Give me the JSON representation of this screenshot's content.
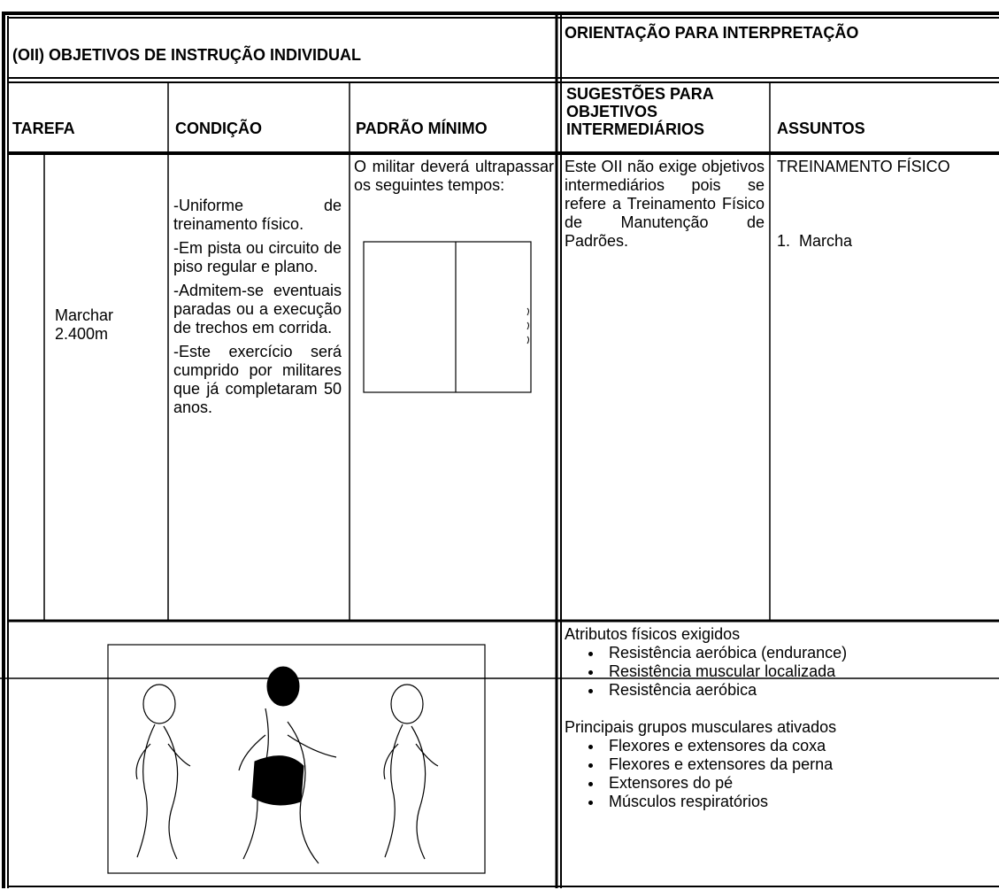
{
  "header": {
    "left": "(OII) OBJETIVOS DE INSTRUÇÃO INDIVIDUAL",
    "right": "ORIENTAÇÃO PARA INTERPRETAÇÃO"
  },
  "columns": [
    "TAREFA",
    "CONDIÇÃO",
    "PADRÃO MÍNIMO",
    "SUGESTÕES PARA OBJETIVOS INTERMEDIÁRIOS",
    "ASSUNTOS"
  ],
  "row": {
    "tarefa": "Marchar 2.400m",
    "condicao": [
      "-Uniforme de treinamento físico.",
      "-Em pista ou circuito de piso regular e plano.",
      "-Admitem-se eventuais paradas ou a execução de trechos em corrida.",
      "-Este exercício será cumprido por militares que já completaram 50 anos."
    ],
    "padrao_minimo": "O militar deverá ultrapassar os seguintes tempos:",
    "sugestoes": "Este OII não exige objetivos intermediários pois se refere a Treinamento Físico de Manutenção de Padrões.",
    "assuntos": {
      "title": "TREINAMENTO FÍSICO",
      "item": "1.  Marcha"
    }
  },
  "attributes": {
    "title": "Atributos físicos exigidos",
    "items": [
      "Resistência aeróbica (endurance)",
      "Resistência muscular localizada",
      "Resistência aeróbica"
    ]
  },
  "muscles": {
    "title": "Principais grupos musculares ativados",
    "items": [
      "Flexores e extensores da coxa",
      "Flexores e extensores da perna",
      "Extensores do pé",
      "Músculos respiratórios"
    ]
  }
}
